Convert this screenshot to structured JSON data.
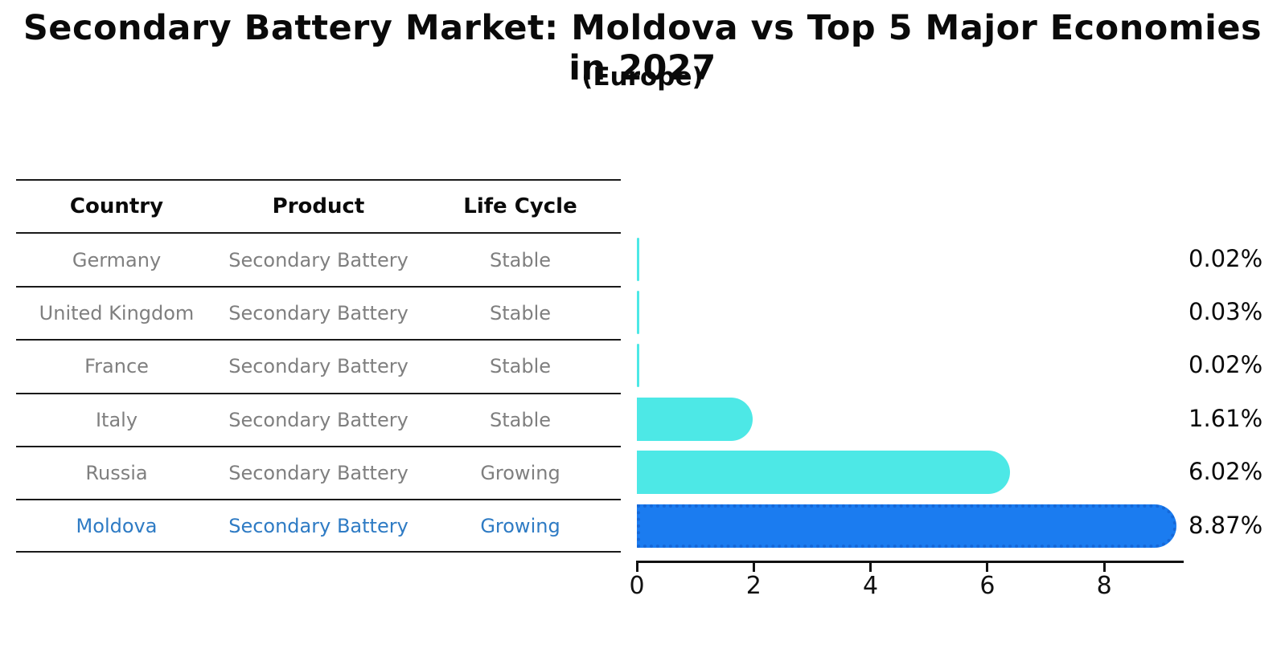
{
  "title": "Secondary Battery Market: Moldova vs Top 5 Major Economies in 2027",
  "subtitle": "(Europe)",
  "table": {
    "columns": [
      "Country",
      "Product",
      "Life Cycle"
    ],
    "rows": [
      {
        "country": "Germany",
        "product": "Secondary Battery",
        "life_cycle": "Stable",
        "highlight": false
      },
      {
        "country": "United Kingdom",
        "product": "Secondary Battery",
        "life_cycle": "Stable",
        "highlight": false
      },
      {
        "country": "France",
        "product": "Secondary Battery",
        "life_cycle": "Stable",
        "highlight": false
      },
      {
        "country": "Italy",
        "product": "Secondary Battery",
        "life_cycle": "Stable",
        "highlight": false
      },
      {
        "country": "Russia",
        "product": "Secondary Battery",
        "life_cycle": "Growing",
        "highlight": false
      },
      {
        "country": "Moldova",
        "product": "Secondary Battery",
        "life_cycle": "Growing",
        "highlight": true
      }
    ]
  },
  "chart_data": {
    "type": "bar",
    "orientation": "horizontal",
    "title": "Secondary Battery Market: Moldova vs Top 5 Major Economies in 2027",
    "subtitle": "(Europe)",
    "categories": [
      "Germany",
      "United Kingdom",
      "France",
      "Italy",
      "Russia",
      "Moldova"
    ],
    "values": [
      0.02,
      0.03,
      0.02,
      1.61,
      6.02,
      8.87
    ],
    "value_labels": [
      "0.02%",
      "0.03%",
      "0.02%",
      "1.61%",
      "6.02%",
      "8.87%"
    ],
    "xlabel": "",
    "ylabel": "",
    "x_ticks": [
      0,
      2,
      4,
      6,
      8
    ],
    "xlim": [
      0,
      9.35
    ],
    "grid": false,
    "legend": false,
    "bar_color": "#4de8e6",
    "highlight_bar_color": "#1b7cf0",
    "highlight_index": 5,
    "highlight_text_color": "#2e7bc4",
    "text_color": "#7f7f7f"
  }
}
